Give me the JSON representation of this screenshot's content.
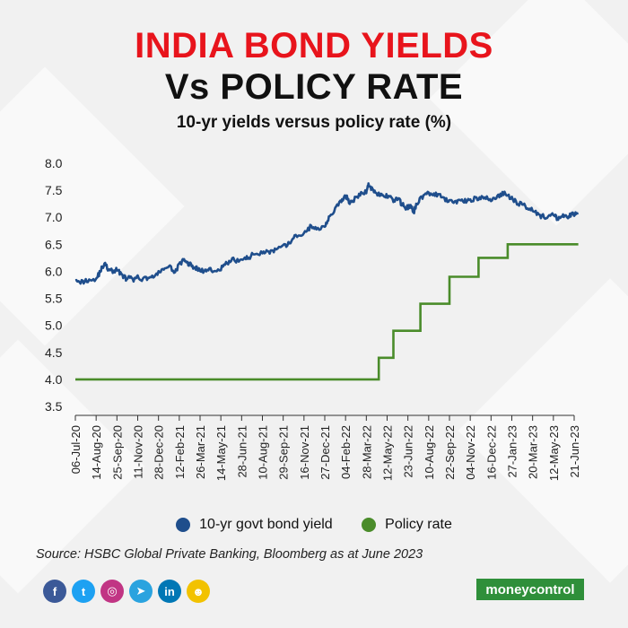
{
  "header": {
    "title_line1": "INDIA BOND YIELDS",
    "title_line2": "Vs POLICY RATE",
    "subtitle": "10-yr yields versus policy rate (%)"
  },
  "colors": {
    "yield": "#1f4e8c",
    "policy": "#4a8c2a",
    "title_red": "#e8141c",
    "axis_text": "#222222",
    "brand_green": "#2f8f3a"
  },
  "chart_data": {
    "type": "line",
    "title": "India Bond Yields Vs Policy Rate",
    "ylabel": "%",
    "xlabel": "",
    "ylim": [
      3.5,
      8.0
    ],
    "yticks": [
      "8.0",
      "7.5",
      "7.0",
      "6.5",
      "6.0",
      "5.5",
      "5.0",
      "4.5",
      "4.0",
      "3.5"
    ],
    "xtick_labels": [
      "06-Jul-20",
      "14-Aug-20",
      "25-Sep-20",
      "11-Nov-20",
      "28-Dec-20",
      "12-Feb-21",
      "26-Mar-21",
      "14-May-21",
      "28-Jun-21",
      "10-Aug-21",
      "29-Sep-21",
      "16-Nov-21",
      "27-Dec-21",
      "04-Feb-22",
      "28-Mar-22",
      "12-May-22",
      "23-Jun-22",
      "10-Aug-22",
      "22-Sep-22",
      "04-Nov-22",
      "16-Dec-22",
      "27-Jan-23",
      "20-Mar-23",
      "12-May-23",
      "21-Jun-23"
    ],
    "legend_position": "bottom",
    "series": [
      {
        "name": "10-yr govt bond yield",
        "x": [
          0,
          0.3,
          0.6,
          1,
          1.2,
          1.4,
          1.6,
          1.8,
          2,
          2.2,
          2.4,
          2.6,
          2.8,
          3,
          3.3,
          3.6,
          3.9,
          4.2,
          4.5,
          4.8,
          5,
          5.2,
          5.4,
          5.6,
          5.8,
          6,
          6.3,
          6.6,
          7,
          7.3,
          7.6,
          8,
          8.3,
          8.6,
          9,
          9.3,
          9.6,
          10,
          10.3,
          10.6,
          11,
          11.3,
          11.6,
          12,
          12.2,
          12.5,
          12.8,
          13,
          13.2,
          13.4,
          13.7,
          14,
          14.1,
          14.3,
          14.5,
          14.7,
          14.9,
          15.1,
          15.3,
          15.5,
          15.7,
          15.9,
          16.1,
          16.3,
          16.5,
          16.7,
          17,
          17.3,
          17.6,
          17.9,
          18.2,
          18.5,
          18.8,
          19.1,
          19.4,
          19.7,
          20,
          20.3,
          20.6,
          20.9,
          21.2,
          21.5,
          21.8,
          22.1,
          22.4,
          22.7,
          23,
          23.2,
          23.4,
          23.6,
          23.8,
          24,
          24.2
        ],
        "values": [
          5.88,
          5.8,
          5.84,
          5.86,
          6.0,
          6.15,
          6.02,
          6.0,
          6.03,
          5.96,
          5.87,
          5.88,
          5.84,
          5.88,
          5.86,
          5.9,
          5.92,
          6.05,
          6.08,
          6.0,
          6.12,
          6.2,
          6.16,
          6.1,
          6.06,
          6.02,
          6.0,
          6.03,
          6.05,
          6.15,
          6.21,
          6.2,
          6.25,
          6.32,
          6.36,
          6.36,
          6.38,
          6.45,
          6.52,
          6.65,
          6.7,
          6.82,
          6.78,
          6.85,
          7.0,
          7.15,
          7.3,
          7.4,
          7.28,
          7.32,
          7.42,
          7.48,
          7.6,
          7.52,
          7.45,
          7.4,
          7.38,
          7.42,
          7.3,
          7.35,
          7.25,
          7.18,
          7.2,
          7.12,
          7.3,
          7.38,
          7.45,
          7.42,
          7.38,
          7.3,
          7.28,
          7.32,
          7.3,
          7.34,
          7.35,
          7.36,
          7.33,
          7.38,
          7.44,
          7.38,
          7.28,
          7.24,
          7.18,
          7.12,
          7.02,
          7.0,
          7.04,
          6.98,
          7.02,
          7.0,
          7.04,
          7.06,
          7.08
        ]
      },
      {
        "name": "Policy rate",
        "x": [
          0,
          14.6,
          14.6,
          15.3,
          15.3,
          16.6,
          16.6,
          18.0,
          18.0,
          19.4,
          19.4,
          20.8,
          20.8,
          22.1,
          22.1,
          24.2
        ],
        "values": [
          4.0,
          4.0,
          4.4,
          4.4,
          4.9,
          4.9,
          5.4,
          5.4,
          5.9,
          5.9,
          6.25,
          6.25,
          6.5,
          6.5,
          6.5,
          6.5
        ]
      }
    ]
  },
  "legend": {
    "yield_label": "10-yr govt bond yield",
    "policy_label": "Policy rate"
  },
  "footer": {
    "source": "Source: HSBC Global Private Banking, Bloomberg as at June 2023",
    "brand": "moneycontrol",
    "social_icons": [
      "facebook-icon",
      "twitter-icon",
      "instagram-icon",
      "telegram-icon",
      "linkedin-icon",
      "snapchat-icon"
    ],
    "social_glyphs": [
      "f",
      "t",
      "◎",
      "➤",
      "in",
      "☻"
    ],
    "social_colors": [
      "#3b5998",
      "#1da1f2",
      "#c13584",
      "#2aa3df",
      "#0077b5",
      "#f2c200"
    ]
  }
}
